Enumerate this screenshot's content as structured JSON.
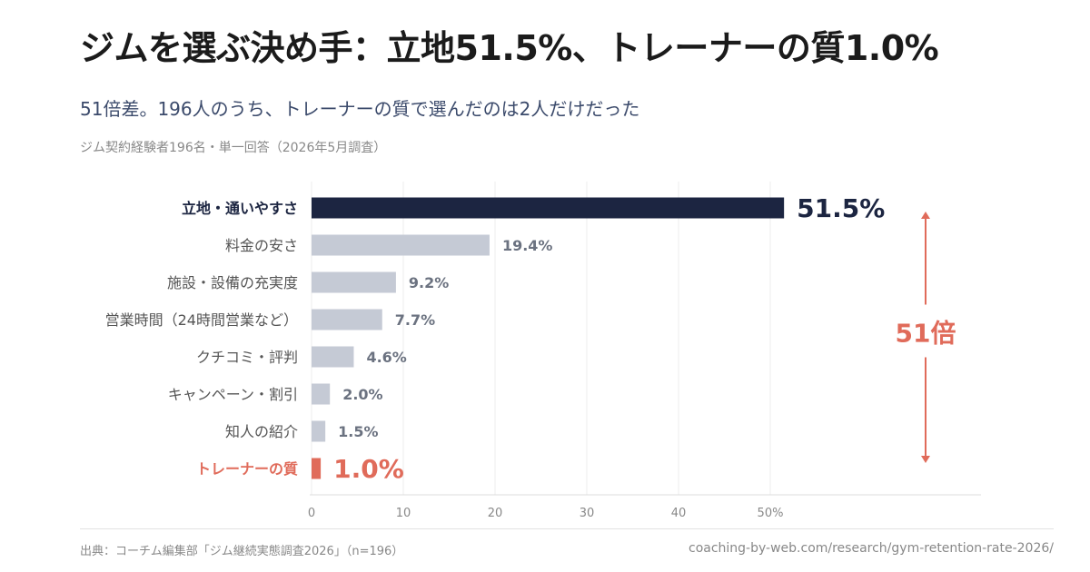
{
  "header": {
    "title": "ジムを選ぶ決め手：立地51.5%、トレーナーの質1.0%",
    "subtitle": "51倍差。196人のうち、トレーナーの質で選んだのは2人だけだった",
    "caption": "ジム契約経験者196名・単一回答（2026年5月調査）"
  },
  "chart_data": {
    "type": "bar",
    "orientation": "horizontal",
    "categories": [
      "立地・通いやすさ",
      "料金の安さ",
      "施設・設備の充実度",
      "営業時間（24時間営業など）",
      "クチコミ・評判",
      "キャンペーン・割引",
      "知人の紹介",
      "トレーナーの質"
    ],
    "values": [
      51.5,
      19.4,
      9.2,
      7.7,
      4.6,
      2.0,
      1.5,
      1.0
    ],
    "value_labels": [
      "51.5%",
      "19.4%",
      "9.2%",
      "7.7%",
      "4.6%",
      "2.0%",
      "1.5%",
      "1.0%"
    ],
    "x_ticks": [
      "0",
      "10",
      "20",
      "30",
      "40",
      "50%"
    ],
    "xlim": [
      0,
      50
    ],
    "grid": true,
    "annotation": "51倍",
    "colors": {
      "highlight": "#1c2541",
      "default": "#c5cad5",
      "accent": "#e06b5a",
      "label_default": "#555555",
      "value_default": "#6b7280",
      "axis_text": "#888888",
      "grid": "#ececec"
    }
  },
  "footer": {
    "source": "出典：コーチム編集部「ジム継続実態調査2026」（n=196）",
    "url": "coaching-by-web.com/research/gym-retention-rate-2026/"
  }
}
